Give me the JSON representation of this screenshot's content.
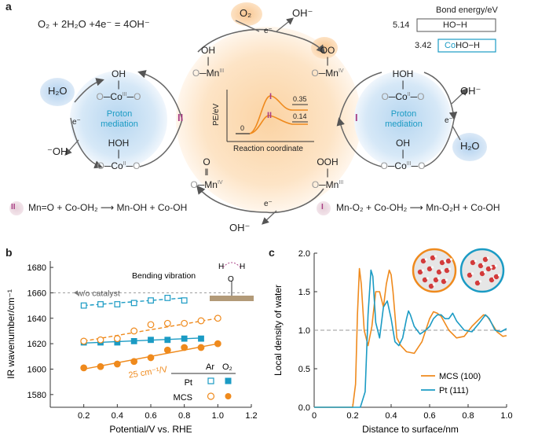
{
  "panel_labels": {
    "a": "a",
    "b": "b",
    "c": "c"
  },
  "panel_a": {
    "equation": "O₂ + 2H₂O +4e⁻ = 4OH⁻",
    "bond_energy": {
      "title": "Bond energy/eV",
      "rows": [
        {
          "value": "5.14",
          "label": "HO−H"
        },
        {
          "value": "3.42",
          "label_co": "Co",
          "label_rest": "HO−H"
        }
      ]
    },
    "species": {
      "o2": "O₂",
      "oh_minus": "OH⁻",
      "h2o": "H₂O",
      "minus_oh": "⁻OH",
      "e_minus": "e⁻",
      "proton_mediation": [
        "Proton",
        "mediation"
      ]
    },
    "roman": {
      "I": "I",
      "II": "II"
    },
    "inset": {
      "ylabel": "PE/eV",
      "xlabel": "Reaction coordinate",
      "zero": "0",
      "val_I": "0.35",
      "val_II": "0.14"
    },
    "reactions": {
      "II": {
        "badge": "II",
        "text": "Mn=O + Co-OH₂ ⟶ Mn-OH + Co-OH"
      },
      "I": {
        "badge": "I",
        "text": "Mn-O₂ + Co-OH₂ ⟶ Mn-O₂H + Co-OH"
      }
    },
    "structures": {
      "mn_oh": {
        "top": "OH",
        "metal": "Mn",
        "ox": "III"
      },
      "mn_oo": {
        "top": "OO",
        "metal": "Mn",
        "ox": "IV"
      },
      "mn_o": {
        "top": "O",
        "metal": "Mn",
        "ox": "IV"
      },
      "mn_ooh": {
        "top": "OOH",
        "metal": "Mn",
        "ox": "III"
      },
      "co_oh_l": {
        "top": "OH",
        "metal": "Co",
        "ox": "III"
      },
      "co_hoh_l": {
        "top": "HOH",
        "metal": "Co",
        "ox": "II"
      },
      "co_hoh_r": {
        "top": "HOH",
        "metal": "Co",
        "ox": "II"
      },
      "co_oh_r": {
        "top": "OH",
        "metal": "Co",
        "ox": "III"
      },
      "o": "O"
    }
  },
  "panel_b": {
    "chart_data": {
      "type": "scatter",
      "xlabel": "Potential/V vs. RHE",
      "ylabel": "IR wavenumber/cm⁻¹",
      "xlim": [
        0,
        1.2
      ],
      "ylim": [
        1570,
        1685
      ],
      "xticks": [
        0.2,
        0.4,
        0.6,
        0.8,
        1.0,
        1.2
      ],
      "yticks": [
        1580,
        1600,
        1620,
        1640,
        1660,
        1680
      ],
      "wo_catalyst": {
        "y": 1660,
        "label": "w/o catalyst"
      },
      "bending_label": "Bending vibration",
      "slope_label": "25 cm⁻¹/V",
      "legend": {
        "col1": "Ar",
        "col2": "O₂",
        "rows": [
          "Pt",
          "MCS"
        ]
      },
      "series": [
        {
          "name": "Pt Ar",
          "color": "#1b9bc4",
          "marker": "open-square",
          "x": [
            0.2,
            0.3,
            0.4,
            0.5,
            0.6,
            0.7,
            0.8
          ],
          "y": [
            1650,
            1651,
            1651,
            1652,
            1654,
            1656,
            1654
          ]
        },
        {
          "name": "Pt O2",
          "color": "#1b9bc4",
          "marker": "filled-square",
          "x": [
            0.2,
            0.3,
            0.4,
            0.5,
            0.6,
            0.7,
            0.8,
            0.9
          ],
          "y": [
            1621,
            1621,
            1621,
            1622,
            1623,
            1623,
            1624,
            1624
          ]
        },
        {
          "name": "MCS Ar",
          "color": "#ef8a1d",
          "marker": "open-circle",
          "x": [
            0.2,
            0.3,
            0.4,
            0.5,
            0.6,
            0.7,
            0.8,
            0.9,
            1.0
          ],
          "y": [
            1622,
            1623,
            1624,
            1630,
            1635,
            1636,
            1636,
            1638,
            1640
          ]
        },
        {
          "name": "MCS O2",
          "color": "#ef8a1d",
          "marker": "filled-circle",
          "x": [
            0.2,
            0.3,
            0.4,
            0.5,
            0.6,
            0.7,
            0.8,
            0.9,
            1.0
          ],
          "y": [
            1601,
            1602,
            1604,
            1606,
            1609,
            1615,
            1617,
            1617,
            1620
          ]
        }
      ],
      "fits": [
        {
          "color": "#1b9bc4",
          "dash": true,
          "x": [
            0.2,
            0.8
          ],
          "y": [
            1650,
            1656
          ]
        },
        {
          "color": "#1b9bc4",
          "dash": false,
          "x": [
            0.2,
            0.9
          ],
          "y": [
            1620.5,
            1624.5
          ]
        },
        {
          "color": "#ef8a1d",
          "dash": true,
          "x": [
            0.2,
            1.0
          ],
          "y": [
            1622,
            1640
          ]
        },
        {
          "color": "#ef8a1d",
          "dash": false,
          "x": [
            0.2,
            1.0
          ],
          "y": [
            1600,
            1620
          ]
        }
      ]
    }
  },
  "panel_c": {
    "chart_data": {
      "type": "line",
      "xlabel": "Distance to surface/nm",
      "ylabel": "Local density of water",
      "xlim": [
        0,
        1.0
      ],
      "ylim": [
        0,
        2.0
      ],
      "xticks": [
        0,
        0.2,
        0.4,
        0.6,
        0.8,
        1.0
      ],
      "yticks": [
        0,
        0.5,
        1.0,
        1.5,
        2.0
      ],
      "reference_y": 1.0,
      "series": [
        {
          "name": "MCS (100)",
          "color": "#ef8a1d",
          "x": [
            0,
            0.2,
            0.215,
            0.225,
            0.235,
            0.245,
            0.26,
            0.28,
            0.3,
            0.32,
            0.34,
            0.36,
            0.375,
            0.39,
            0.4,
            0.41,
            0.43,
            0.45,
            0.48,
            0.52,
            0.56,
            0.6,
            0.62,
            0.64,
            0.66,
            0.7,
            0.74,
            0.78,
            0.82,
            0.86,
            0.88,
            0.9,
            0.92,
            0.95,
            0.98,
            1.0
          ],
          "y": [
            0,
            0,
            0.3,
            1.2,
            1.8,
            1.6,
            1.0,
            0.8,
            1.05,
            1.5,
            1.5,
            1.3,
            1.6,
            1.78,
            1.72,
            1.5,
            0.9,
            0.8,
            0.72,
            0.7,
            0.85,
            1.15,
            1.24,
            1.22,
            1.18,
            1.0,
            0.9,
            0.92,
            1.05,
            1.15,
            1.2,
            1.18,
            1.1,
            0.98,
            0.92,
            0.93
          ]
        },
        {
          "name": "Pt (111)",
          "color": "#1b9bc4",
          "x": [
            0,
            0.24,
            0.265,
            0.28,
            0.295,
            0.305,
            0.32,
            0.34,
            0.36,
            0.38,
            0.4,
            0.42,
            0.44,
            0.46,
            0.48,
            0.49,
            0.5,
            0.52,
            0.55,
            0.58,
            0.6,
            0.62,
            0.64,
            0.66,
            0.68,
            0.7,
            0.72,
            0.74,
            0.78,
            0.82,
            0.86,
            0.89,
            0.91,
            0.94,
            0.97,
            1.0
          ],
          "y": [
            0,
            0,
            0.2,
            1.2,
            1.78,
            1.7,
            1.1,
            0.9,
            1.3,
            1.38,
            1.15,
            0.85,
            0.8,
            0.9,
            1.15,
            1.25,
            1.2,
            1.05,
            0.95,
            1.0,
            1.05,
            1.15,
            1.2,
            1.2,
            1.15,
            1.15,
            1.22,
            1.12,
            1.0,
            0.98,
            1.1,
            1.2,
            1.15,
            1.0,
            0.98,
            1.02
          ]
        }
      ],
      "legend": [
        "MCS (100)",
        "Pt (111)"
      ]
    }
  }
}
